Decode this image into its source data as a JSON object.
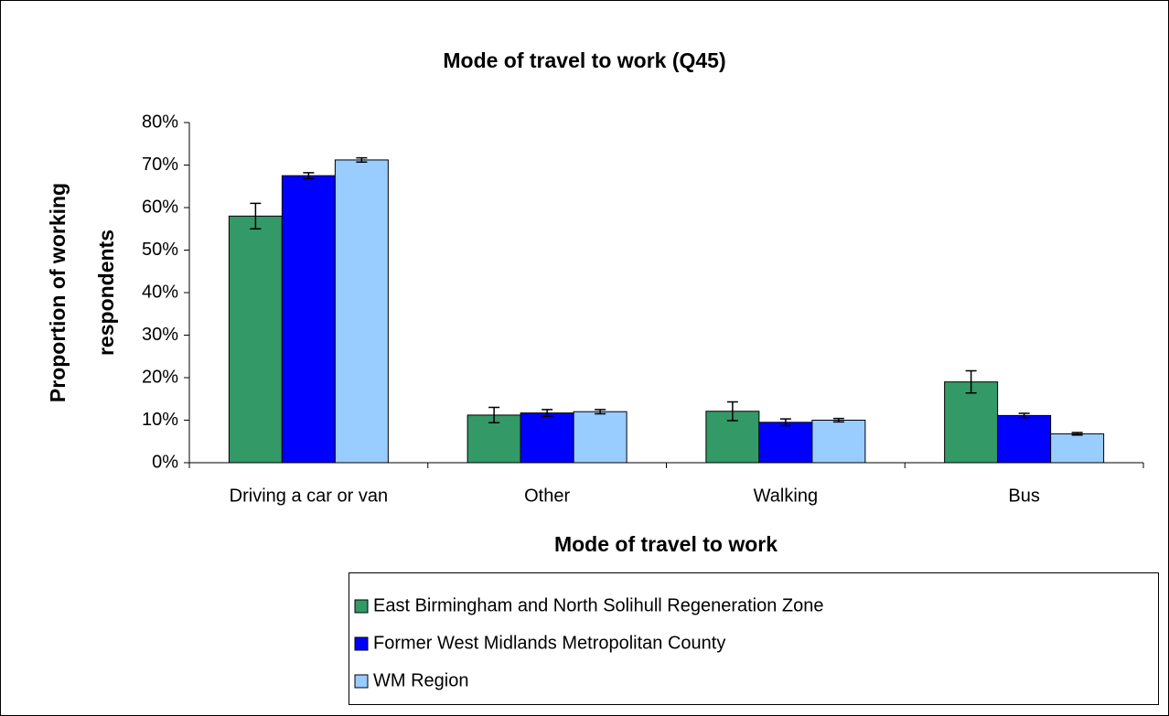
{
  "chart_data": {
    "type": "bar",
    "title": "Mode of travel to work (Q45)",
    "xlabel": "Mode of travel to work",
    "ylabel": [
      "Proportion of working",
      "respondents"
    ],
    "categories": [
      "Driving a car or van",
      "Other",
      "Walking",
      "Bus"
    ],
    "series": [
      {
        "name": "East Birmingham and North Solihull Regeneration Zone",
        "color": "#339966",
        "values": [
          58,
          11.2,
          12.1,
          19.0
        ],
        "errors": [
          3,
          1.8,
          2.2,
          2.6
        ]
      },
      {
        "name": "Former West Midlands Metropolitan County",
        "color": "#0000ff",
        "values": [
          67.5,
          11.7,
          9.5,
          11.1
        ],
        "errors": [
          0.7,
          0.8,
          0.8,
          0.5
        ]
      },
      {
        "name": "WM Region",
        "color": "#99ccff",
        "values": [
          71.2,
          12.0,
          10.0,
          6.8
        ],
        "errors": [
          0.5,
          0.5,
          0.4,
          0.3
        ]
      }
    ],
    "ylim": [
      0,
      80
    ],
    "yticks": [
      {
        "value": 0,
        "label": "0%"
      },
      {
        "value": 10,
        "label": "10%"
      },
      {
        "value": 20,
        "label": "20%"
      },
      {
        "value": 30,
        "label": "30%"
      },
      {
        "value": 40,
        "label": "40%"
      },
      {
        "value": 50,
        "label": "50%"
      },
      {
        "value": 60,
        "label": "60%"
      },
      {
        "value": 70,
        "label": "70%"
      },
      {
        "value": 80,
        "label": "80%"
      }
    ],
    "grid": false,
    "legend": "bottom"
  }
}
